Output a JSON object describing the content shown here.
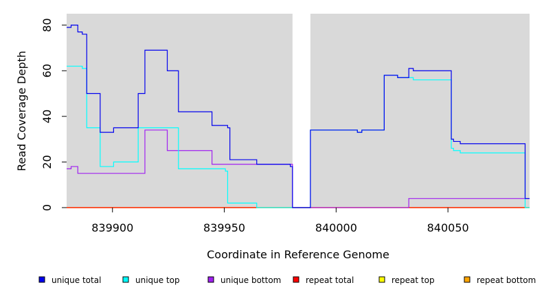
{
  "chart_data": {
    "type": "line",
    "xlabel": "Coordinate in Reference Genome",
    "ylabel": "Read Coverage Depth",
    "xlim": [
      839879.5,
      840086.5
    ],
    "ylim": [
      0,
      85
    ],
    "xticks": [
      839900,
      839950,
      840000,
      840050
    ],
    "yticks": [
      0,
      20,
      40,
      60,
      80
    ],
    "grid": false,
    "background": "#d9d9d9",
    "gap_regions": [
      [
        839980.5,
        839988.5
      ]
    ],
    "legend_position": "bottom",
    "series": [
      {
        "name": "unique total",
        "color": "#0000ee",
        "steps": [
          [
            839879.5,
            79
          ],
          [
            839881.5,
            80
          ],
          [
            839884.5,
            77
          ],
          [
            839886.5,
            76
          ],
          [
            839888.5,
            50
          ],
          [
            839894.5,
            33
          ],
          [
            839900.5,
            35
          ],
          [
            839911.5,
            50
          ],
          [
            839914.5,
            69
          ],
          [
            839924.5,
            60
          ],
          [
            839929.5,
            42
          ],
          [
            839944.5,
            36
          ],
          [
            839951.5,
            35
          ],
          [
            839952.5,
            21
          ],
          [
            839964.5,
            19
          ],
          [
            839979.5,
            18
          ],
          [
            839980.5,
            0
          ],
          [
            839988.5,
            34
          ],
          [
            840009.5,
            33
          ],
          [
            840011.5,
            34
          ],
          [
            840021.5,
            58
          ],
          [
            840027.5,
            57
          ],
          [
            840032.5,
            61
          ],
          [
            840034.5,
            60
          ],
          [
            840051.5,
            30
          ],
          [
            840052.5,
            29
          ],
          [
            840055.5,
            28
          ],
          [
            840084.5,
            4
          ],
          [
            840086.5,
            4
          ]
        ]
      },
      {
        "name": "unique top",
        "color": "#00ffff",
        "steps": [
          [
            839879.5,
            62
          ],
          [
            839886.5,
            61
          ],
          [
            839888.5,
            35
          ],
          [
            839894.5,
            18
          ],
          [
            839900.5,
            20
          ],
          [
            839911.5,
            35
          ],
          [
            839929.5,
            17
          ],
          [
            839950.5,
            16
          ],
          [
            839951.5,
            2
          ],
          [
            839964.5,
            0
          ],
          [
            839988.5,
            34
          ],
          [
            840009.5,
            33
          ],
          [
            840011.5,
            34
          ],
          [
            840021.5,
            58
          ],
          [
            840027.5,
            57
          ],
          [
            840034.5,
            56
          ],
          [
            840051.5,
            26
          ],
          [
            840052.5,
            25
          ],
          [
            840055.5,
            24
          ],
          [
            840084.5,
            0
          ],
          [
            840086.5,
            0
          ]
        ]
      },
      {
        "name": "unique bottom",
        "color": "#a020f0",
        "steps": [
          [
            839879.5,
            17
          ],
          [
            839881.5,
            18
          ],
          [
            839884.5,
            15
          ],
          [
            839914.5,
            34
          ],
          [
            839924.5,
            25
          ],
          [
            839944.5,
            19
          ],
          [
            839980.5,
            0
          ],
          [
            840032.5,
            4
          ],
          [
            840086.5,
            4
          ]
        ]
      },
      {
        "name": "repeat total",
        "color": "#ff0000",
        "steps": [
          [
            839879.5,
            0
          ],
          [
            840086.5,
            0
          ]
        ]
      },
      {
        "name": "repeat top",
        "color": "#ffff00",
        "steps": [
          [
            839879.5,
            0
          ],
          [
            840086.5,
            0
          ]
        ]
      },
      {
        "name": "repeat bottom",
        "color": "#ffa500",
        "steps": [
          [
            839879.5,
            0
          ],
          [
            840086.5,
            0
          ]
        ]
      }
    ]
  }
}
